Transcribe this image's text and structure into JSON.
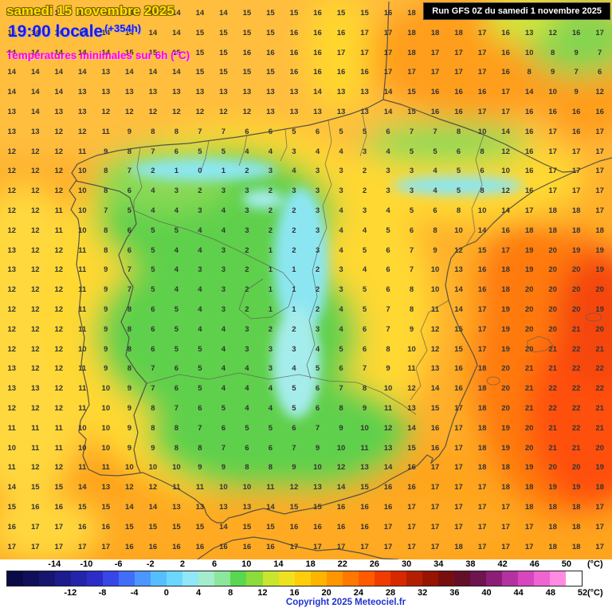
{
  "header": {
    "date_line": "samedi 15 novembre 2025",
    "time_line": "19:00 locale",
    "time_offset": "(+354h)",
    "subtitle": "Températures minimales sur 6h (°C)",
    "run_info": "Run GFS 0Z du samedi 1 novembre 2025"
  },
  "footer": {
    "copyright": "Copyright 2025 Meteociel.fr",
    "unit_label": "(°C)"
  },
  "palette": {
    "sea_base": "#FFAF2B",
    "sea_light": "#FFBE3C",
    "sea_yellow": "#FFD83C",
    "sea_south": "#FFA41F",
    "france_orange": "#FF9E1E",
    "france_green": "#86D44F",
    "france_yellow_green": "#CFE63E",
    "coast_yellow_band": "#FFD52F",
    "interior_yellow": "#FFD831",
    "green_core": "#5FD04B",
    "green_light": "#8BDA55",
    "cyan_band": "#8CE6F2",
    "cyan_pale": "#A5ECEC",
    "se_orange": "#FF7A10",
    "se_red": "#FF500A",
    "red_edge": "#F5460A",
    "warm_coast": "#FFAA22",
    "date_text": "#FFE400",
    "time_text": "#1A1AE6",
    "subtitle_text": "#FF00E0",
    "copyright_text": "#2233CC"
  },
  "scale": {
    "min": -20,
    "max": 52,
    "step": 2,
    "top_labels": [
      -14,
      -10,
      -6,
      -2,
      2,
      6,
      10,
      14,
      18,
      22,
      26,
      30,
      34,
      38,
      42,
      46,
      50
    ],
    "bottom_labels": [
      -12,
      -8,
      -4,
      0,
      4,
      8,
      12,
      16,
      20,
      24,
      28,
      32,
      36,
      40,
      44,
      48,
      52
    ],
    "segment_colors": [
      "#0A0A46",
      "#10105A",
      "#16166E",
      "#1C1C8C",
      "#2424AA",
      "#2C2CC8",
      "#3746E6",
      "#416EF6",
      "#4B96FF",
      "#55BEFF",
      "#6BD7FF",
      "#91E6F7",
      "#A5EBCD",
      "#8CE69B",
      "#5AD750",
      "#8CDC3C",
      "#C8E62D",
      "#F0E11E",
      "#FFCD0A",
      "#FFB400",
      "#FF9600",
      "#FF7800",
      "#FF5A00",
      "#F03C00",
      "#D72800",
      "#B41E00",
      "#961400",
      "#780F0F",
      "#640F28",
      "#6E1450",
      "#8C1E78",
      "#B432A0",
      "#D746BE",
      "#F064D2",
      "#FF8CE1",
      "#FFFFFF"
    ]
  },
  "map": {
    "grid_values": [
      [
        14,
        14,
        14,
        14,
        14,
        14,
        14,
        14,
        14,
        14,
        15,
        15,
        15,
        16,
        15,
        15,
        16,
        18,
        18,
        18,
        17,
        16,
        13,
        12,
        16,
        17
      ],
      [
        14,
        14,
        14,
        14,
        14,
        14,
        14,
        14,
        15,
        15,
        15,
        15,
        16,
        16,
        16,
        17,
        17,
        18,
        18,
        18,
        17,
        16,
        13,
        12,
        16,
        17
      ],
      [
        14,
        14,
        14,
        14,
        14,
        15,
        15,
        15,
        15,
        15,
        16,
        16,
        16,
        16,
        17,
        17,
        17,
        18,
        17,
        17,
        17,
        16,
        10,
        8,
        9,
        7
      ],
      [
        14,
        14,
        14,
        14,
        13,
        14,
        14,
        14,
        15,
        15,
        15,
        15,
        16,
        16,
        16,
        16,
        17,
        17,
        17,
        17,
        17,
        16,
        8,
        9,
        7,
        6
      ],
      [
        14,
        14,
        14,
        13,
        13,
        13,
        13,
        13,
        13,
        13,
        13,
        13,
        13,
        14,
        13,
        13,
        14,
        15,
        16,
        16,
        16,
        17,
        14,
        10,
        9,
        12
      ],
      [
        13,
        14,
        13,
        13,
        12,
        12,
        12,
        12,
        12,
        12,
        12,
        13,
        13,
        13,
        13,
        13,
        14,
        15,
        16,
        16,
        17,
        17,
        16,
        16,
        16,
        16
      ],
      [
        13,
        13,
        12,
        12,
        11,
        9,
        8,
        8,
        7,
        7,
        6,
        6,
        5,
        6,
        5,
        5,
        6,
        7,
        7,
        8,
        10,
        14,
        16,
        17,
        16,
        17
      ],
      [
        12,
        12,
        12,
        11,
        9,
        8,
        7,
        6,
        5,
        5,
        4,
        4,
        3,
        4,
        4,
        3,
        4,
        5,
        5,
        6,
        8,
        12,
        16,
        17,
        17,
        17
      ],
      [
        12,
        12,
        12,
        10,
        8,
        7,
        2,
        1,
        0,
        1,
        2,
        3,
        4,
        3,
        3,
        2,
        3,
        3,
        4,
        5,
        6,
        10,
        16,
        17,
        17,
        17
      ],
      [
        12,
        12,
        12,
        10,
        8,
        6,
        4,
        3,
        2,
        3,
        3,
        2,
        3,
        3,
        3,
        2,
        3,
        3,
        4,
        5,
        8,
        12,
        16,
        17,
        17,
        17
      ],
      [
        12,
        12,
        11,
        10,
        7,
        5,
        4,
        4,
        3,
        4,
        3,
        2,
        2,
        3,
        4,
        3,
        4,
        5,
        6,
        8,
        10,
        14,
        17,
        18,
        18,
        17
      ],
      [
        12,
        12,
        11,
        10,
        8,
        6,
        5,
        5,
        4,
        4,
        3,
        2,
        2,
        3,
        4,
        4,
        5,
        6,
        8,
        10,
        14,
        16,
        18,
        18,
        18,
        18
      ],
      [
        13,
        12,
        12,
        11,
        8,
        6,
        5,
        4,
        4,
        3,
        2,
        1,
        2,
        3,
        4,
        5,
        6,
        7,
        9,
        12,
        15,
        17,
        19,
        20,
        19,
        19
      ],
      [
        13,
        12,
        12,
        11,
        9,
        7,
        5,
        4,
        3,
        3,
        2,
        1,
        1,
        2,
        3,
        4,
        6,
        7,
        10,
        13,
        16,
        18,
        19,
        20,
        20,
        19
      ],
      [
        12,
        12,
        12,
        11,
        9,
        7,
        5,
        4,
        4,
        3,
        2,
        1,
        1,
        2,
        3,
        5,
        6,
        8,
        10,
        14,
        16,
        18,
        20,
        20,
        20,
        20
      ],
      [
        12,
        12,
        12,
        11,
        9,
        8,
        6,
        5,
        4,
        3,
        2,
        1,
        1,
        2,
        4,
        5,
        7,
        8,
        11,
        14,
        17,
        19,
        20,
        20,
        20,
        19
      ],
      [
        12,
        12,
        12,
        11,
        9,
        8,
        6,
        5,
        4,
        4,
        3,
        2,
        2,
        3,
        4,
        6,
        7,
        9,
        12,
        15,
        17,
        19,
        20,
        20,
        21,
        20
      ],
      [
        12,
        12,
        12,
        10,
        9,
        8,
        6,
        5,
        5,
        4,
        3,
        3,
        3,
        4,
        5,
        6,
        8,
        10,
        12,
        15,
        17,
        19,
        20,
        21,
        22,
        21
      ],
      [
        13,
        12,
        12,
        11,
        9,
        8,
        7,
        6,
        5,
        4,
        4,
        3,
        4,
        5,
        6,
        7,
        9,
        11,
        13,
        16,
        18,
        20,
        21,
        21,
        22,
        22
      ],
      [
        13,
        13,
        12,
        11,
        10,
        9,
        7,
        6,
        5,
        4,
        4,
        4,
        5,
        6,
        7,
        8,
        10,
        12,
        14,
        16,
        18,
        20,
        21,
        22,
        22,
        22
      ],
      [
        12,
        12,
        12,
        11,
        10,
        9,
        8,
        7,
        6,
        5,
        4,
        4,
        5,
        6,
        8,
        9,
        11,
        13,
        15,
        17,
        18,
        20,
        21,
        22,
        22,
        21
      ],
      [
        11,
        11,
        11,
        10,
        10,
        9,
        8,
        8,
        7,
        6,
        5,
        5,
        6,
        7,
        9,
        10,
        12,
        14,
        16,
        17,
        18,
        19,
        20,
        21,
        22,
        21
      ],
      [
        10,
        11,
        11,
        10,
        10,
        9,
        9,
        8,
        8,
        7,
        6,
        6,
        7,
        9,
        10,
        11,
        13,
        15,
        16,
        17,
        18,
        19,
        20,
        21,
        21,
        20
      ],
      [
        11,
        12,
        12,
        11,
        11,
        10,
        10,
        10,
        9,
        9,
        8,
        8,
        9,
        10,
        12,
        13,
        14,
        16,
        17,
        17,
        18,
        18,
        19,
        20,
        20,
        19
      ],
      [
        14,
        15,
        15,
        14,
        13,
        12,
        12,
        11,
        11,
        10,
        10,
        11,
        12,
        13,
        14,
        15,
        16,
        16,
        17,
        17,
        17,
        18,
        18,
        19,
        19,
        18
      ],
      [
        15,
        16,
        16,
        15,
        15,
        14,
        14,
        13,
        13,
        13,
        13,
        14,
        15,
        15,
        16,
        16,
        16,
        17,
        17,
        17,
        17,
        17,
        18,
        18,
        18,
        17
      ],
      [
        16,
        17,
        17,
        16,
        16,
        15,
        15,
        15,
        15,
        14,
        15,
        15,
        16,
        16,
        16,
        16,
        17,
        17,
        17,
        17,
        17,
        17,
        17,
        18,
        18,
        17
      ],
      [
        17,
        17,
        17,
        17,
        17,
        16,
        16,
        16,
        16,
        16,
        16,
        16,
        17,
        17,
        17,
        17,
        17,
        17,
        17,
        18,
        17,
        17,
        17,
        18,
        18,
        17
      ]
    ]
  }
}
